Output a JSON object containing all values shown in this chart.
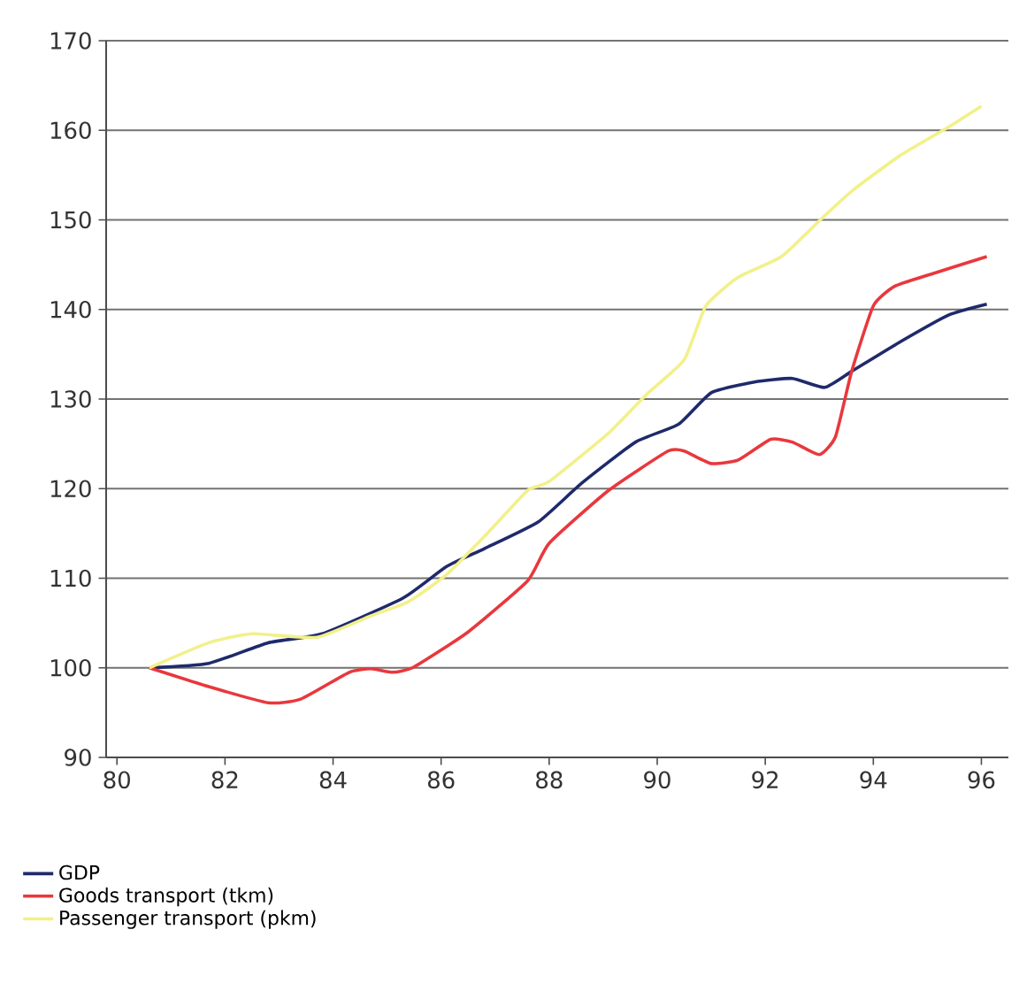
{
  "chart_data": {
    "type": "line",
    "xlim": [
      79.8,
      96.5
    ],
    "xticks": [
      80,
      82,
      84,
      86,
      88,
      90,
      92,
      94,
      96
    ],
    "ylim": [
      90,
      170
    ],
    "yticks": [
      90,
      100,
      110,
      120,
      130,
      140,
      150,
      160,
      170
    ],
    "grid": "y",
    "legend": "bottom",
    "line_style": "solid",
    "marker": "none",
    "series": [
      {
        "name": "GDP",
        "color": "#1f2a6b",
        "x": [
          80.6,
          81.7,
          82.8,
          83.8,
          85.3,
          86.1,
          86.8,
          87.8,
          88.6,
          89.6,
          90.4,
          91.0,
          91.8,
          92.5,
          93.1,
          93.6,
          94.5,
          95.4,
          96.1
        ],
        "values": [
          100,
          100.5,
          102.8,
          103.8,
          107.8,
          111.3,
          113.3,
          116.3,
          120.6,
          125.2,
          127.2,
          130.7,
          131.9,
          132.3,
          131.3,
          133.1,
          136.4,
          139.4,
          140.6
        ]
      },
      {
        "name": "Goods transport (tkm)",
        "color": "#e8383d",
        "x": [
          80.6,
          81.7,
          82.8,
          83.4,
          84.3,
          84.7,
          85.1,
          85.5,
          86.5,
          87.6,
          88.0,
          89.1,
          90.2,
          90.5,
          91.0,
          91.5,
          92.1,
          92.5,
          93.0,
          93.3,
          93.6,
          94.0,
          94.4,
          95.1,
          96.1
        ],
        "values": [
          100,
          97.9,
          96.1,
          96.5,
          99.5,
          99.9,
          99.5,
          100.1,
          104.0,
          109.7,
          113.9,
          119.8,
          124.2,
          124.2,
          122.8,
          123.2,
          125.5,
          125.2,
          123.8,
          125.8,
          133.1,
          140.4,
          142.6,
          144.0,
          145.9
        ]
      },
      {
        "name": "Passenger transport (pkm)",
        "color": "#f2f08a",
        "x": [
          80.6,
          81.7,
          82.5,
          83.7,
          84.7,
          85.4,
          86.1,
          86.9,
          87.6,
          88.0,
          89.1,
          89.8,
          90.5,
          90.9,
          91.5,
          92.3,
          93.0,
          93.6,
          94.5,
          95.4,
          96.0
        ],
        "values": [
          100,
          102.8,
          103.8,
          103.4,
          105.8,
          107.4,
          110.4,
          115.3,
          119.8,
          120.8,
          126.2,
          130.5,
          134.4,
          140.4,
          143.6,
          145.9,
          149.9,
          153.2,
          157.2,
          160.4,
          162.7
        ]
      }
    ]
  }
}
